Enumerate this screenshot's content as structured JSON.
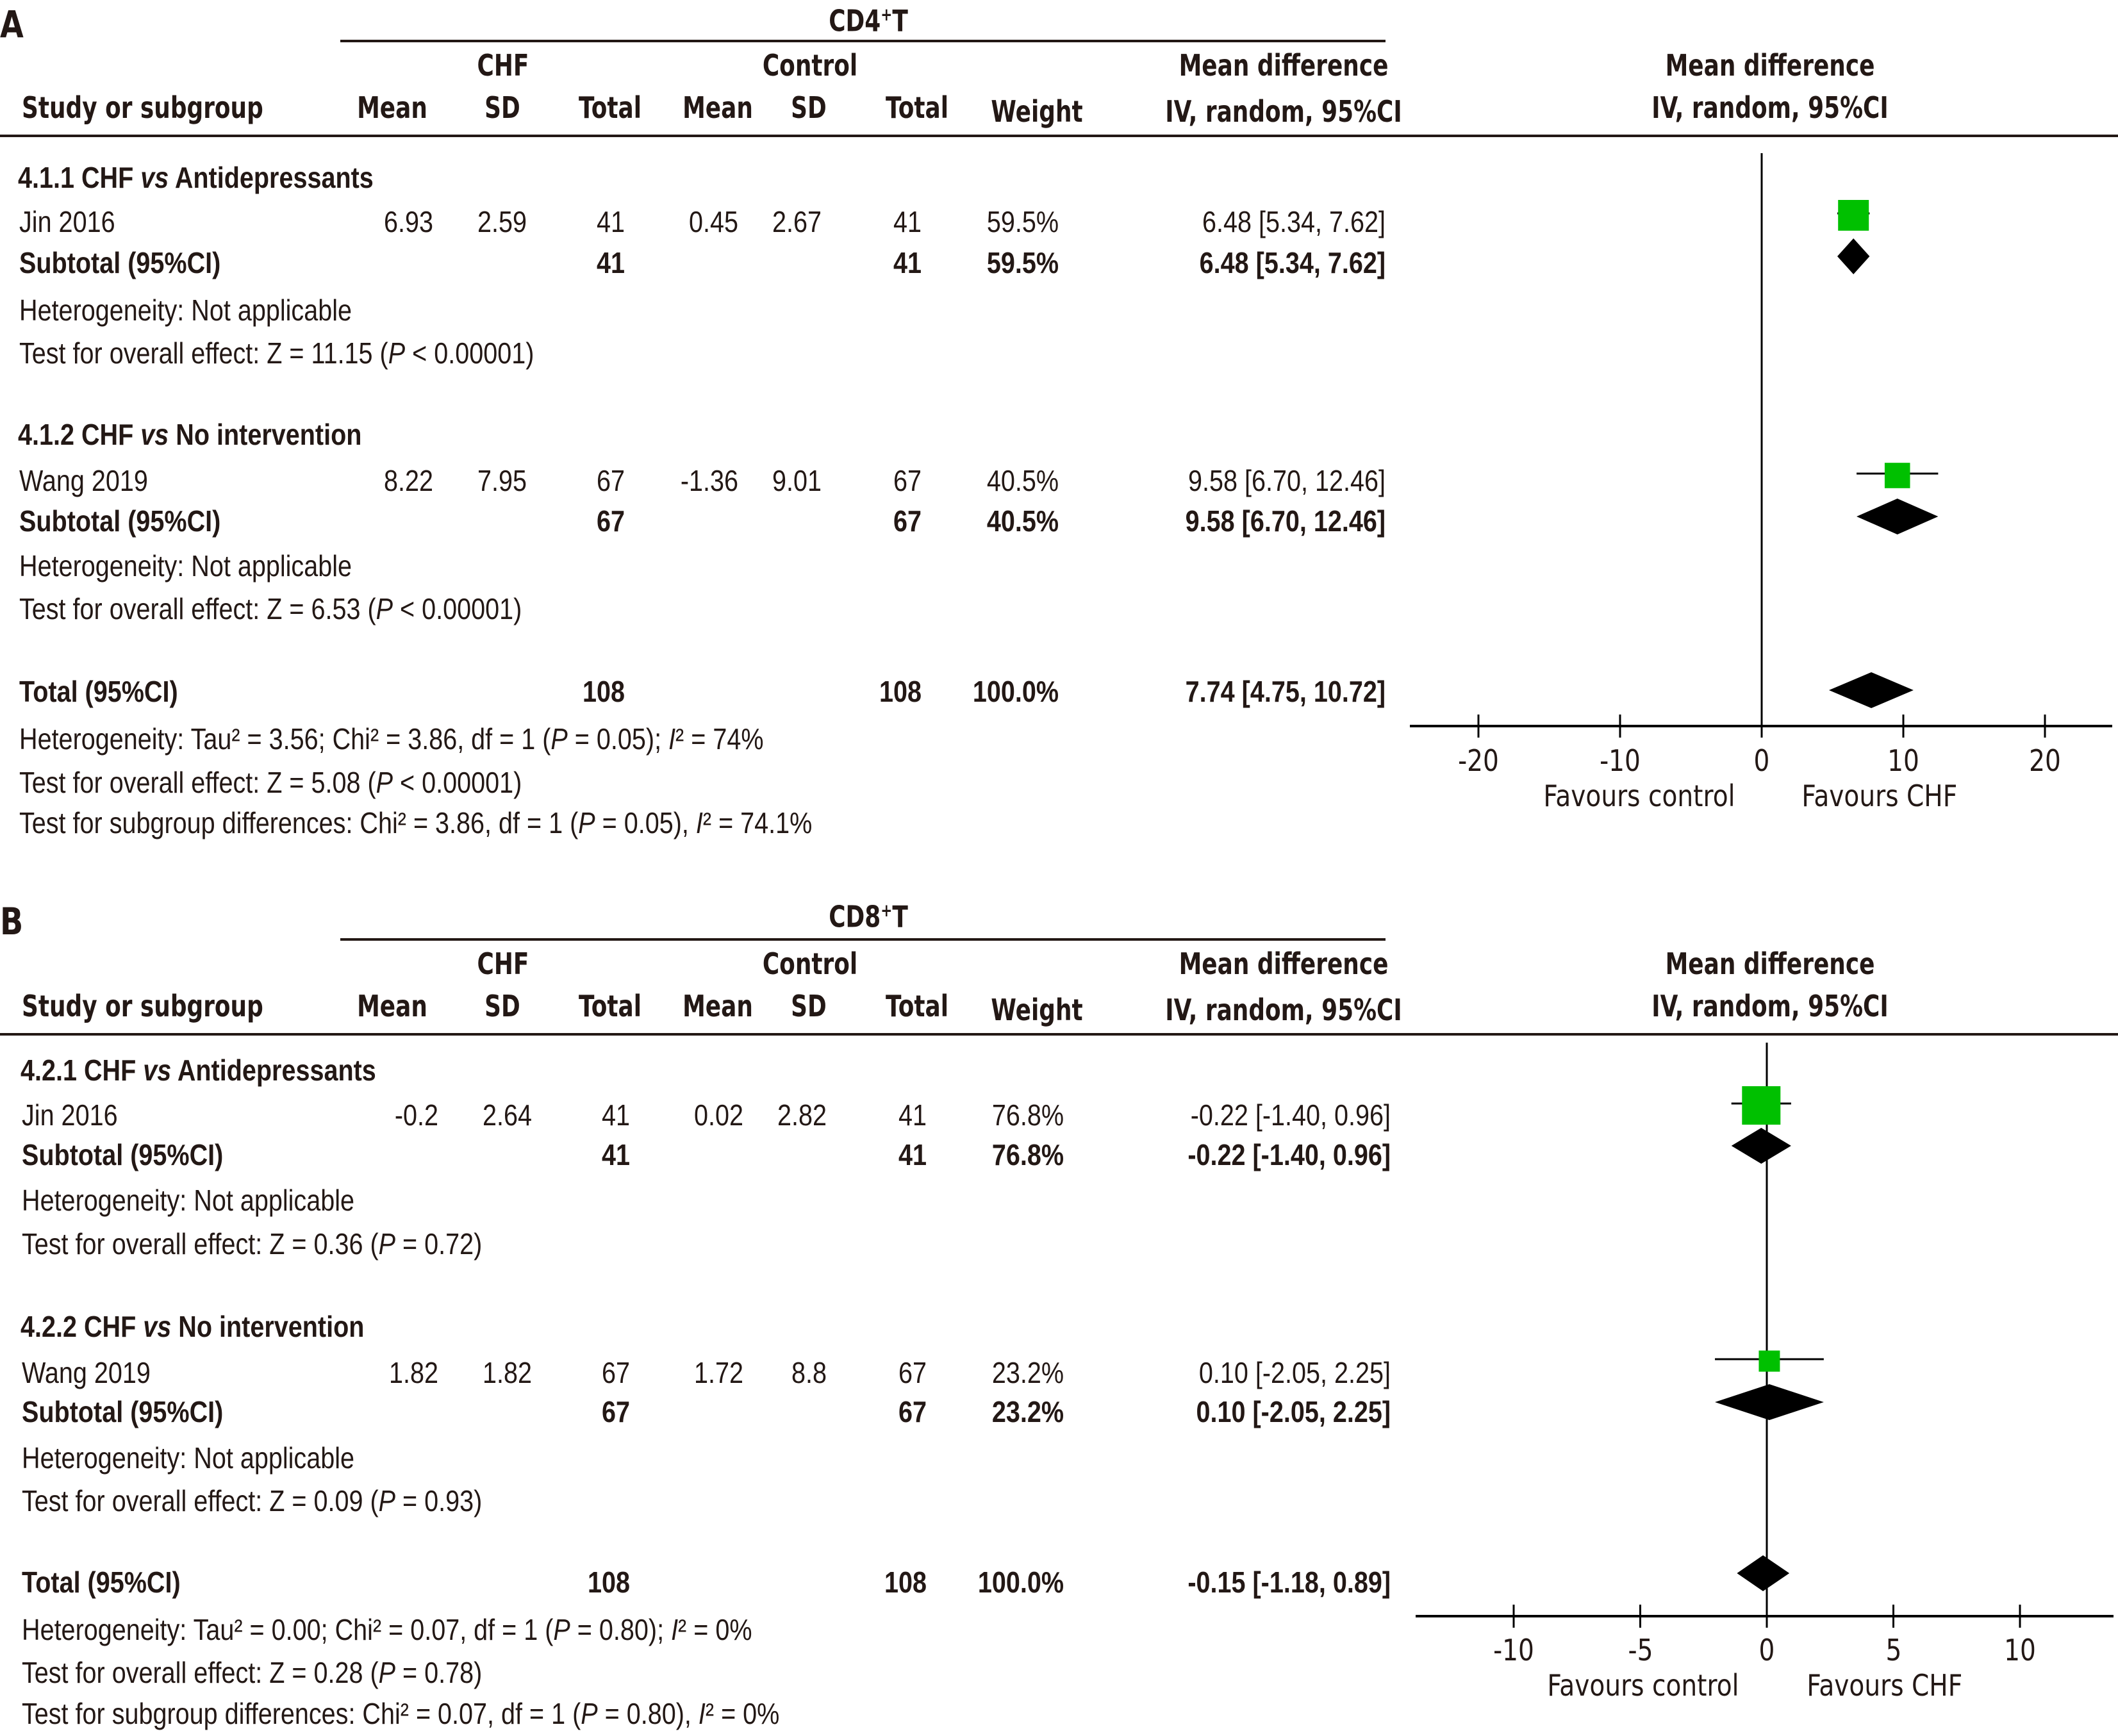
{
  "colors": {
    "study_marker": "#00c000",
    "pooled_marker": "#000000",
    "text": "#231815"
  },
  "header": {
    "study": "Study or subgroup",
    "chf_group": "CHF",
    "control_group": "Control",
    "mean": "Mean",
    "sd": "SD",
    "total": "Total",
    "weight": "Weight",
    "md_title": "Mean difference",
    "md_method": "IV, random, 95%CI"
  },
  "panels": [
    {
      "letter": "A",
      "title": "CD4",
      "title_sup": "+",
      "title_suffix": "T",
      "subgroups": [
        {
          "label_pre": "4.1.1 CHF ",
          "label_vs": "vs",
          "label_post": " Antidepressants",
          "study": {
            "name": "Jin 2016",
            "chf_mean": "6.93",
            "chf_sd": "2.59",
            "chf_total": "41",
            "ctl_mean": "0.45",
            "ctl_sd": "2.67",
            "ctl_total": "41",
            "weight": "59.5%",
            "ci": "6.48 [5.34, 7.62]"
          },
          "subtotal": {
            "label": "Subtotal (95%CI)",
            "chf_total": "41",
            "ctl_total": "41",
            "weight": "59.5%",
            "ci": "6.48 [5.34, 7.62]"
          },
          "heterogeneity": "Heterogeneity: Not applicable",
          "overall_pre": "Test for overall effect: Z = 11.15 (",
          "overall_p": "P",
          "overall_post": " < 0.00001)"
        },
        {
          "label_pre": "4.1.2 CHF ",
          "label_vs": "vs",
          "label_post": " No intervention",
          "study": {
            "name": "Wang 2019",
            "chf_mean": "8.22",
            "chf_sd": "7.95",
            "chf_total": "67",
            "ctl_mean": "-1.36",
            "ctl_sd": "9.01",
            "ctl_total": "67",
            "weight": "40.5%",
            "ci": "9.58 [6.70, 12.46]"
          },
          "subtotal": {
            "label": "Subtotal (95%CI)",
            "chf_total": "67",
            "ctl_total": "67",
            "weight": "40.5%",
            "ci": "9.58 [6.70, 12.46]"
          },
          "heterogeneity": "Heterogeneity: Not applicable",
          "overall_pre": "Test for overall effect: Z = 6.53 (",
          "overall_p": "P",
          "overall_post": " < 0.00001)"
        }
      ],
      "total": {
        "label": "Total (95%CI)",
        "chf_total": "108",
        "ctl_total": "108",
        "weight": "100.0%",
        "ci": "7.74 [4.75, 10.72]"
      },
      "total_heterogeneity": {
        "pre": "Heterogeneity: Tau² = 3.56; Chi² = 3.86, df = 1 (",
        "p": "P",
        "mid": " = 0.05); ",
        "i": "I",
        "post": "² = 74%"
      },
      "total_overall": {
        "pre": "Test for overall effect: Z = 5.08 (",
        "p": "P",
        "post": " < 0.00001)"
      },
      "subgroup_diff": {
        "pre": "Test for subgroup differences: Chi² = 3.86, df = 1 (",
        "p": "P",
        "mid": " = 0.05), ",
        "i": "I",
        "post": "² = 74.1%"
      },
      "axis": {
        "ticks": [
          "-20",
          "-10",
          "0",
          "10",
          "20"
        ],
        "favours_left": "Favours control",
        "favours_right": "Favours CHF"
      }
    },
    {
      "letter": "B",
      "title": "CD8",
      "title_sup": "+",
      "title_suffix": "T",
      "subgroups": [
        {
          "label_pre": "4.2.1 CHF ",
          "label_vs": "vs",
          "label_post": " Antidepressants",
          "study": {
            "name": "Jin 2016",
            "chf_mean": "-0.2",
            "chf_sd": "2.64",
            "chf_total": "41",
            "ctl_mean": "0.02",
            "ctl_sd": "2.82",
            "ctl_total": "41",
            "weight": "76.8%",
            "ci": "-0.22 [-1.40, 0.96]"
          },
          "subtotal": {
            "label": "Subtotal (95%CI)",
            "chf_total": "41",
            "ctl_total": "41",
            "weight": "76.8%",
            "ci": "-0.22 [-1.40, 0.96]"
          },
          "heterogeneity": "Heterogeneity: Not applicable",
          "overall_pre": "Test for overall effect: Z = 0.36 (",
          "overall_p": "P",
          "overall_post": " = 0.72)"
        },
        {
          "label_pre": "4.2.2 CHF ",
          "label_vs": "vs",
          "label_post": " No intervention",
          "study": {
            "name": "Wang 2019",
            "chf_mean": "1.82",
            "chf_sd": "1.82",
            "chf_total": "67",
            "ctl_mean": "1.72",
            "ctl_sd": "8.8",
            "ctl_total": "67",
            "weight": "23.2%",
            "ci": "0.10 [-2.05, 2.25]"
          },
          "subtotal": {
            "label": "Subtotal (95%CI)",
            "chf_total": "67",
            "ctl_total": "67",
            "weight": "23.2%",
            "ci": "0.10 [-2.05, 2.25]"
          },
          "heterogeneity": "Heterogeneity: Not applicable",
          "overall_pre": "Test for overall effect: Z = 0.09 (",
          "overall_p": "P",
          "overall_post": " = 0.93)"
        }
      ],
      "total": {
        "label": "Total (95%CI)",
        "chf_total": "108",
        "ctl_total": "108",
        "weight": "100.0%",
        "ci": "-0.15 [-1.18, 0.89]"
      },
      "total_heterogeneity": {
        "pre": "Heterogeneity: Tau² = 0.00; Chi² = 0.07, df = 1 (",
        "p": "P",
        "mid": " = 0.80); ",
        "i": "I",
        "post": "² = 0%"
      },
      "total_overall": {
        "pre": "Test for overall effect: Z = 0.28 (",
        "p": "P",
        "post": " = 0.78)"
      },
      "subgroup_diff": {
        "pre": "Test for subgroup differences: Chi² = 0.07, df = 1 (",
        "p": "P",
        "mid": " = 0.80), ",
        "i": "I",
        "post": "² = 0%"
      },
      "axis": {
        "ticks": [
          "-10",
          "-5",
          "0",
          "5",
          "10"
        ],
        "favours_left": "Favours control",
        "favours_right": "Favours CHF"
      }
    }
  ],
  "chart_data": [
    {
      "type": "forest",
      "title": "CD4+T",
      "xlabel": "Mean difference IV, random, 95%CI",
      "xlim": [
        -25,
        25
      ],
      "xticks": [
        -20,
        -10,
        0,
        10,
        20
      ],
      "legend": {
        "left": "Favours control",
        "right": "Favours CHF"
      },
      "rows": [
        {
          "label": "Jin 2016",
          "kind": "study",
          "md": 6.48,
          "lo": 5.34,
          "hi": 7.62,
          "weight": 59.5
        },
        {
          "label": "Subtotal 4.1.1",
          "kind": "pooled",
          "md": 6.48,
          "lo": 5.34,
          "hi": 7.62
        },
        {
          "label": "Wang 2019",
          "kind": "study",
          "md": 9.58,
          "lo": 6.7,
          "hi": 12.46,
          "weight": 40.5
        },
        {
          "label": "Subtotal 4.1.2",
          "kind": "pooled",
          "md": 9.58,
          "lo": 6.7,
          "hi": 12.46
        },
        {
          "label": "Total",
          "kind": "pooled",
          "md": 7.74,
          "lo": 4.75,
          "hi": 10.72
        }
      ]
    },
    {
      "type": "forest",
      "title": "CD8+T",
      "xlabel": "Mean difference IV, random, 95%CI",
      "xlim": [
        -14,
        13
      ],
      "xticks": [
        -10,
        -5,
        0,
        5,
        10
      ],
      "legend": {
        "left": "Favours control",
        "right": "Favours CHF"
      },
      "rows": [
        {
          "label": "Jin 2016",
          "kind": "study",
          "md": -0.22,
          "lo": -1.4,
          "hi": 0.96,
          "weight": 76.8
        },
        {
          "label": "Subtotal 4.2.1",
          "kind": "pooled",
          "md": -0.22,
          "lo": -1.4,
          "hi": 0.96
        },
        {
          "label": "Wang 2019",
          "kind": "study",
          "md": 0.1,
          "lo": -2.05,
          "hi": 2.25,
          "weight": 23.2
        },
        {
          "label": "Subtotal 4.2.2",
          "kind": "pooled",
          "md": 0.1,
          "lo": -2.05,
          "hi": 2.25
        },
        {
          "label": "Total",
          "kind": "pooled",
          "md": -0.15,
          "lo": -1.18,
          "hi": 0.89
        }
      ]
    }
  ]
}
